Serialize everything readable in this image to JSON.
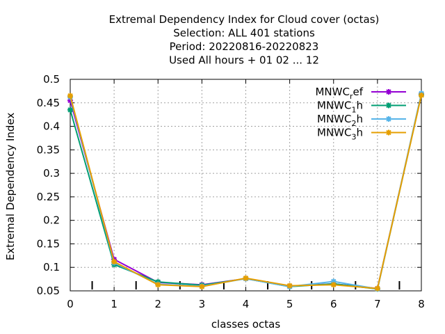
{
  "chart_data": {
    "type": "line",
    "title_lines": [
      "Extremal Dependency Index  for Cloud cover (octas)",
      "Selection: ALL    401 stations",
      "Period: 20220816-20220823",
      "Used  All hours + 01 02 ... 12"
    ],
    "xlabel": "classes octas",
    "ylabel": "Extremal Dependency Index",
    "xlim": [
      0,
      8
    ],
    "ylim": [
      0.05,
      0.5
    ],
    "x_ticks": [
      "0",
      "1",
      "2",
      "3",
      "4",
      "5",
      "6",
      "7",
      "8"
    ],
    "y_ticks": [
      "0.05",
      "0.1",
      "0.15",
      "0.2",
      "0.25",
      "0.3",
      "0.35",
      "0.4",
      "0.45",
      "0.5"
    ],
    "grid": true,
    "legend_position": "top-right",
    "x": [
      0,
      1,
      2,
      3,
      4,
      5,
      6,
      7,
      8
    ],
    "series": [
      {
        "name_base": "MNWC",
        "name_sub": "r",
        "name_rest": "ef",
        "color": "#9400d3",
        "values": [
          0.455,
          0.117,
          0.068,
          0.063,
          0.076,
          0.06,
          0.065,
          0.055,
          0.468
        ]
      },
      {
        "name_base": "MNWC",
        "name_sub": "1",
        "name_rest": "h",
        "color": "#009e73",
        "values": [
          0.435,
          0.106,
          0.069,
          0.062,
          0.076,
          0.059,
          0.065,
          0.054,
          0.467
        ]
      },
      {
        "name_base": "MNWC",
        "name_sub": "2",
        "name_rest": "h",
        "color": "#56b4e9",
        "values": [
          0.462,
          0.11,
          0.064,
          0.06,
          0.076,
          0.059,
          0.07,
          0.054,
          0.47
        ]
      },
      {
        "name_base": "MNWC",
        "name_sub": "3",
        "name_rest": "h",
        "color": "#e69f00",
        "values": [
          0.465,
          0.112,
          0.063,
          0.059,
          0.077,
          0.061,
          0.063,
          0.055,
          0.466
        ]
      }
    ],
    "minor_tick_positions": [
      0.5,
      1.5,
      2.5,
      3.5,
      4.5,
      5.5,
      6.5,
      7.5
    ]
  }
}
